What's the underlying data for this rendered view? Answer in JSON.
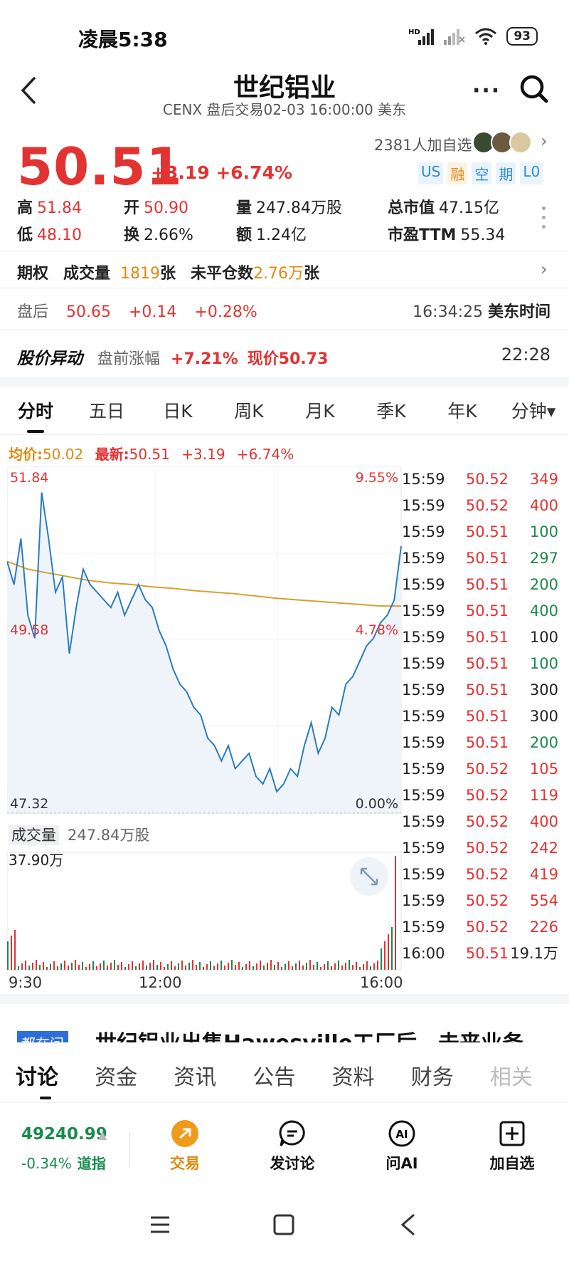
{
  "status_bar": {
    "time": "凌晨5:38",
    "battery": "93"
  },
  "header": {
    "title": "世纪铝业",
    "subtitle": "CENX 盘后交易02-03 16:00:00 美东"
  },
  "quote": {
    "price": "50.51",
    "change": "+3.19 +6.74%",
    "watchers": "2381人加自选",
    "tags": [
      "US",
      "融",
      "空",
      "期",
      "L0"
    ]
  },
  "stats": {
    "high_label": "高",
    "high": "51.84",
    "open_label": "开",
    "open": "50.90",
    "volume_label": "量",
    "volume": "247.84万股",
    "mktcap_label": "总市值",
    "mktcap": "47.15亿",
    "low_label": "低",
    "low": "48.10",
    "turnover_label": "换",
    "turnover": "2.66%",
    "amount_label": "额",
    "amount": "1.24亿",
    "pe_label": "市盈TTM",
    "pe": "55.34"
  },
  "options": {
    "label": "期权",
    "volume_label": "成交量",
    "volume": "1819",
    "volume_unit": "张",
    "oi_label": "未平仓数",
    "oi": "2.76万",
    "oi_unit": "张"
  },
  "after_hours": {
    "label": "盘后",
    "price": "50.65",
    "change": "+0.14",
    "pct": "+0.28%",
    "time": "16:34:25",
    "tz": "美东时间"
  },
  "alert": {
    "title": "股价异动",
    "label": "盘前涨幅",
    "pct": "+7.21%",
    "now_label": "现价",
    "now": "50.73",
    "time": "22:28"
  },
  "chart_tabs": [
    "分时",
    "五日",
    "日K",
    "周K",
    "月K",
    "季K",
    "年K",
    "分钟▾"
  ],
  "avg_row": {
    "avg_label": "均价:",
    "avg": "50.02",
    "last_label": "最新:",
    "last": "50.51",
    "chg": "+3.19",
    "pct": "+6.74%"
  },
  "chart_data": {
    "type": "line",
    "y_top": "51.84",
    "y_mid": "49.58",
    "y_bottom": "47.32",
    "pct_top": "9.55%",
    "pct_mid": "4.78%",
    "pct_bottom": "0.00%",
    "ylim": [
      47.32,
      51.84
    ],
    "x_ticks": [
      "9:30",
      "12:00",
      "16:00"
    ],
    "price_series": [
      50.6,
      50.3,
      50.9,
      49.9,
      49.6,
      51.5,
      50.9,
      50.2,
      50.4,
      49.4,
      50.0,
      50.5,
      50.3,
      50.2,
      50.1,
      50.0,
      50.2,
      49.9,
      50.1,
      50.3,
      50.1,
      50.0,
      49.7,
      49.5,
      49.2,
      49.0,
      48.9,
      48.7,
      48.6,
      48.3,
      48.2,
      48.0,
      48.2,
      47.9,
      48.0,
      48.1,
      47.8,
      47.7,
      47.9,
      47.6,
      47.7,
      47.9,
      47.8,
      48.2,
      48.5,
      48.1,
      48.3,
      48.7,
      48.6,
      49.0,
      49.1,
      49.3,
      49.5,
      49.6,
      49.8,
      49.9,
      50.1,
      50.8
    ],
    "avg_series": [
      50.6,
      50.5,
      50.45,
      50.4,
      50.35,
      50.32,
      50.3,
      50.27,
      50.25,
      50.22,
      50.2,
      50.18,
      50.15,
      50.12,
      50.1,
      50.08,
      50.06,
      50.04,
      50.02,
      50.02
    ],
    "volume_label": "成交量",
    "volume_total": "247.84万股",
    "volume_max": "37.90万"
  },
  "ticks": [
    {
      "t": "15:59",
      "p": "50.52",
      "v": "349",
      "c": "r"
    },
    {
      "t": "15:59",
      "p": "50.52",
      "v": "400",
      "c": "r"
    },
    {
      "t": "15:59",
      "p": "50.51",
      "v": "100",
      "c": "g"
    },
    {
      "t": "15:59",
      "p": "50.51",
      "v": "297",
      "c": "g"
    },
    {
      "t": "15:59",
      "p": "50.51",
      "v": "200",
      "c": "g"
    },
    {
      "t": "15:59",
      "p": "50.51",
      "v": "400",
      "c": "g"
    },
    {
      "t": "15:59",
      "p": "50.51",
      "v": "100",
      "c": "k"
    },
    {
      "t": "15:59",
      "p": "50.51",
      "v": "100",
      "c": "g"
    },
    {
      "t": "15:59",
      "p": "50.51",
      "v": "300",
      "c": "k"
    },
    {
      "t": "15:59",
      "p": "50.51",
      "v": "300",
      "c": "k"
    },
    {
      "t": "15:59",
      "p": "50.51",
      "v": "200",
      "c": "g"
    },
    {
      "t": "15:59",
      "p": "50.52",
      "v": "105",
      "c": "r"
    },
    {
      "t": "15:59",
      "p": "50.52",
      "v": "119",
      "c": "r"
    },
    {
      "t": "15:59",
      "p": "50.52",
      "v": "400",
      "c": "r"
    },
    {
      "t": "15:59",
      "p": "50.52",
      "v": "242",
      "c": "r"
    },
    {
      "t": "15:59",
      "p": "50.52",
      "v": "419",
      "c": "r"
    },
    {
      "t": "15:59",
      "p": "50.52",
      "v": "554",
      "c": "r"
    },
    {
      "t": "15:59",
      "p": "50.52",
      "v": "226",
      "c": "r"
    },
    {
      "t": "16:00",
      "p": "50.51",
      "v": "19.1万",
      "c": "k"
    }
  ],
  "news": {
    "tag": "都在问",
    "title": "世纪铝业出售Hawesville工厂后，未来业务..."
  },
  "bottom_tabs": [
    "讨论",
    "资金",
    "资讯",
    "公告",
    "资料",
    "财务",
    "相关"
  ],
  "index": {
    "value": "49240.99",
    "change": "-0.34%",
    "name": "道指"
  },
  "toolbar": {
    "trade": "交易",
    "discuss": "发讨论",
    "ask_ai": "问AI",
    "add_watch": "加自选"
  },
  "colors": {
    "up": "#e23232",
    "down": "#1a8a4e",
    "price_line": "#2b7cc0",
    "avg_line": "#d8a030",
    "brand": "#e08a10"
  }
}
